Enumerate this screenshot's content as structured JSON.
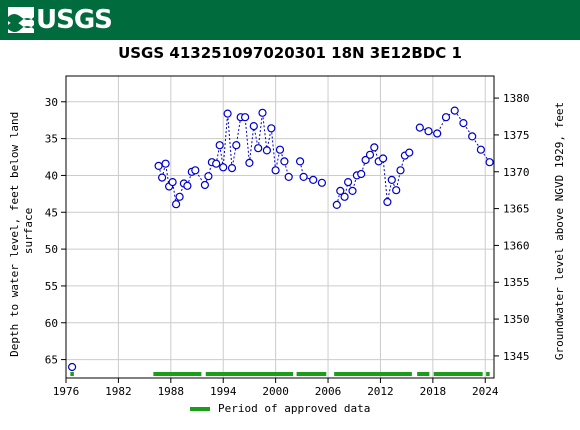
{
  "header": {
    "logo_text": "USGS"
  },
  "chart_data": {
    "type": "scatter",
    "title": "USGS 413251097020301  18N  3E12BDC 1",
    "xlabel": "",
    "ylabel": "Depth to water level, feet below land surface",
    "ylabel_lines": [
      "Depth to water level, feet below land",
      "surface"
    ],
    "y2label": "Groundwater level above NGVD 1929, feet",
    "xlim": [
      1976,
      2025
    ],
    "ylim": [
      67.5,
      26.5
    ],
    "y2lim": [
      1342.0,
      1383.0
    ],
    "x_ticks": [
      "1976",
      "1982",
      "1988",
      "1994",
      "2000",
      "2006",
      "2012",
      "2018",
      "2024"
    ],
    "y_ticks": [
      "30",
      "35",
      "40",
      "45",
      "50",
      "55",
      "60",
      "65"
    ],
    "y2_ticks": [
      "1345",
      "1350",
      "1355",
      "1360",
      "1365",
      "1370",
      "1375",
      "1380"
    ],
    "grid": true,
    "marker_color": "#0000cc",
    "legend": {
      "label": "Period of approved data",
      "color": "#1a9e1a",
      "placement": "bottom"
    },
    "series": [
      {
        "x": [
          1976.7
        ],
        "y": [
          66.0
        ]
      },
      {
        "x": [
          1986.6,
          1987.0,
          1987.4,
          1987.8,
          1988.2,
          1988.6,
          1989.0,
          1989.5,
          1989.9,
          1990.4,
          1990.8,
          1991.9,
          1992.3,
          1992.7,
          1993.2,
          1993.6,
          1994.0,
          1994.5,
          1995.0,
          1995.5,
          1996.0,
          1996.5,
          1997.0,
          1997.5,
          1998.0,
          1998.5,
          1999.0,
          1999.5,
          2000.0,
          2000.5,
          2001.0,
          2001.5
        ],
        "y": [
          38.7,
          40.3,
          38.4,
          41.5,
          40.9,
          43.9,
          42.9,
          41.1,
          41.4,
          39.5,
          39.3,
          41.3,
          40.1,
          38.2,
          38.4,
          35.9,
          38.9,
          31.6,
          39.0,
          35.9,
          32.1,
          32.1,
          38.3,
          33.3,
          36.3,
          31.5,
          36.6,
          33.6,
          39.3,
          36.5,
          38.1,
          40.2
        ]
      },
      {
        "x": [
          2002.8,
          2003.2,
          2004.3,
          2005.3
        ],
        "y": [
          38.1,
          40.2,
          40.6,
          41.0
        ]
      },
      {
        "x": [
          2007.0,
          2007.4,
          2007.9,
          2008.3,
          2008.8,
          2009.3,
          2009.8,
          2010.3,
          2010.8,
          2011.3,
          2011.8,
          2012.3,
          2012.8,
          2013.3,
          2013.8,
          2014.3,
          2014.8,
          2015.3
        ],
        "y": [
          44.0,
          42.1,
          42.9,
          40.9,
          42.1,
          40.0,
          39.8,
          37.9,
          37.2,
          36.2,
          38.1,
          37.7,
          43.6,
          40.6,
          42.0,
          39.3,
          37.3,
          36.9
        ]
      },
      {
        "x": [
          2016.5,
          2017.5,
          2018.5,
          2019.5,
          2020.5,
          2021.5,
          2022.5,
          2023.5,
          2024.5
        ],
        "y": [
          33.5,
          34.0,
          34.3,
          32.1,
          31.2,
          32.9,
          34.7,
          36.5,
          38.2
        ]
      }
    ],
    "approved_periods": [
      [
        1976.5,
        1976.9
      ],
      [
        1986.0,
        1991.5
      ],
      [
        1992.0,
        2002.0
      ],
      [
        2002.4,
        2005.8
      ],
      [
        2006.7,
        2015.6
      ],
      [
        2016.2,
        2017.6
      ],
      [
        2018.1,
        2023.7
      ],
      [
        2024.1,
        2024.5
      ]
    ]
  }
}
